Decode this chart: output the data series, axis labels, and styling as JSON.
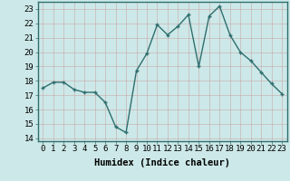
{
  "x": [
    0,
    1,
    2,
    3,
    4,
    5,
    6,
    7,
    8,
    9,
    10,
    11,
    12,
    13,
    14,
    15,
    16,
    17,
    18,
    19,
    20,
    21,
    22,
    23
  ],
  "y": [
    17.5,
    17.9,
    17.9,
    17.4,
    17.2,
    17.2,
    16.5,
    14.8,
    14.4,
    18.7,
    19.9,
    21.9,
    21.2,
    21.8,
    22.6,
    19.0,
    22.5,
    23.2,
    21.2,
    20.0,
    19.4,
    18.6,
    17.8,
    17.1
  ],
  "bg_color": "#cde8e8",
  "grid_color": "#b0d4d4",
  "line_color": "#2e6e6e",
  "xlabel": "Humidex (Indice chaleur)",
  "ylim": [
    13.8,
    23.5
  ],
  "xlim": [
    -0.5,
    23.5
  ],
  "yticks": [
    14,
    15,
    16,
    17,
    18,
    19,
    20,
    21,
    22,
    23
  ],
  "xticks": [
    0,
    1,
    2,
    3,
    4,
    5,
    6,
    7,
    8,
    9,
    10,
    11,
    12,
    13,
    14,
    15,
    16,
    17,
    18,
    19,
    20,
    21,
    22,
    23
  ],
  "xlabel_fontsize": 7.5,
  "tick_fontsize": 6.5,
  "line_width": 1.0,
  "marker_size": 3
}
